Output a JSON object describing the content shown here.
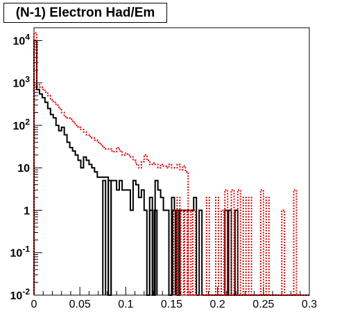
{
  "chart_data": {
    "type": "line",
    "title": "(N-1) Electron Had/Em",
    "xlabel": "",
    "ylabel": "",
    "xlim": [
      0,
      0.3
    ],
    "ylim": [
      0.01,
      20000
    ],
    "ylog": true,
    "grid": false,
    "legend": "none",
    "x_ticks": [
      {
        "v": 0,
        "label": "0"
      },
      {
        "v": 0.05,
        "label": "0.05"
      },
      {
        "v": 0.1,
        "label": "0.1"
      },
      {
        "v": 0.15,
        "label": "0.15"
      },
      {
        "v": 0.2,
        "label": "0.2"
      },
      {
        "v": 0.25,
        "label": "0.25"
      },
      {
        "v": 0.3,
        "label": "0.3"
      }
    ],
    "y_ticks": [
      {
        "v": 0.01,
        "base": "10",
        "exp": "-2"
      },
      {
        "v": 0.1,
        "base": "10",
        "exp": "-1"
      },
      {
        "v": 1,
        "base": "1",
        "exp": ""
      },
      {
        "v": 10,
        "base": "10",
        "exp": ""
      },
      {
        "v": 100,
        "base": "10",
        "exp": "2"
      },
      {
        "v": 1000,
        "base": "10",
        "exp": "3"
      },
      {
        "v": 10000,
        "base": "10",
        "exp": "4"
      }
    ],
    "bin_width": 0.003,
    "series": [
      {
        "color": "#000000",
        "style": "solid",
        "values": [
          10000,
          700,
          550,
          450,
          350,
          250,
          180,
          150,
          100,
          75,
          90,
          60,
          40,
          30,
          25,
          20,
          15,
          10,
          18,
          15,
          12,
          10,
          8,
          6,
          6,
          6,
          6,
          0.01,
          5,
          5,
          3,
          5,
          3,
          3,
          3,
          1,
          5,
          4,
          2,
          3,
          1,
          0.01,
          1,
          0.01,
          5,
          3,
          2,
          1,
          1,
          0.01,
          2,
          1,
          0.01,
          1,
          1,
          1,
          1,
          1,
          2,
          0.01,
          1,
          0.01,
          0.01,
          0.01,
          0.01,
          0.01,
          0.01,
          0.01,
          0.01,
          0.01,
          0.01,
          0.01,
          0.01,
          0.01,
          0.01,
          0.01,
          0.01,
          0.01,
          0.01,
          0.01,
          0.01,
          0.01,
          0.01,
          0.01,
          0.01,
          0.01,
          0.01,
          0.01,
          0.01,
          0.01,
          0.01,
          0.01,
          0.01,
          0.01,
          0.01,
          0.01,
          0.01,
          0.01,
          0.01,
          0.01
        ]
      },
      {
        "color": "#dd0000",
        "style": "dotted",
        "values": [
          15000,
          900,
          800,
          700,
          600,
          500,
          400,
          350,
          300,
          250,
          200,
          160,
          150,
          140,
          120,
          100,
          90,
          80,
          70,
          60,
          55,
          50,
          45,
          40,
          35,
          30,
          28,
          28,
          25,
          24,
          30,
          25,
          20,
          22,
          20,
          18,
          15,
          12,
          10,
          14,
          20,
          15,
          12,
          13,
          12,
          10,
          12,
          11,
          10,
          12,
          10,
          10,
          12,
          9,
          11,
          8,
          0.01,
          0.01,
          0.01,
          0.01,
          0.01,
          0.01,
          0.01,
          0.01,
          0.01,
          0.01,
          0.01,
          0.01,
          0.01,
          0.01,
          0.01,
          0.01,
          0.01,
          0.01,
          0.01,
          0.01,
          0.01,
          0.01,
          0.01,
          0.01,
          0.01,
          0.01,
          0.01,
          0.01,
          0.01,
          0.01,
          0.01,
          0.01,
          0.01,
          0.01,
          0.01,
          0.01,
          0.01,
          0.01,
          0.01,
          0.01,
          0.01,
          0.01,
          0.01,
          0.01
        ]
      }
    ],
    "spikes": [
      {
        "x": 0.075,
        "y": 5,
        "color": "#000000",
        "style": "solid"
      },
      {
        "x": 0.081,
        "y": 5,
        "color": "#000000",
        "style": "solid"
      },
      {
        "x": 0.126,
        "y": 2,
        "color": "#000000",
        "style": "solid"
      },
      {
        "x": 0.131,
        "y": 1,
        "color": "#000000",
        "style": "solid"
      },
      {
        "x": 0.151,
        "y": 1,
        "color": "#000000",
        "style": "solid"
      },
      {
        "x": 0.155,
        "y": 1,
        "color": "#000000",
        "style": "solid"
      },
      {
        "x": 0.208,
        "y": 1,
        "color": "#000000",
        "style": "solid"
      },
      {
        "x": 0.212,
        "y": 1,
        "color": "#000000",
        "style": "solid"
      },
      {
        "x": 0.219,
        "y": 1,
        "color": "#000000",
        "style": "solid"
      },
      {
        "x": 0.152,
        "y": 1,
        "color": "#dd0000",
        "style": "dotted"
      },
      {
        "x": 0.156,
        "y": 2,
        "color": "#dd0000",
        "style": "dotted"
      },
      {
        "x": 0.16,
        "y": 1,
        "color": "#dd0000",
        "style": "dotted"
      },
      {
        "x": 0.164,
        "y": 1,
        "color": "#dd0000",
        "style": "dotted"
      },
      {
        "x": 0.168,
        "y": 1,
        "color": "#dd0000",
        "style": "dotted"
      },
      {
        "x": 0.173,
        "y": 1,
        "color": "#dd0000",
        "style": "dotted"
      },
      {
        "x": 0.188,
        "y": 2,
        "color": "#dd0000",
        "style": "dotted"
      },
      {
        "x": 0.198,
        "y": 2,
        "color": "#dd0000",
        "style": "dotted"
      },
      {
        "x": 0.204,
        "y": 1,
        "color": "#dd0000",
        "style": "dotted"
      },
      {
        "x": 0.208,
        "y": 3,
        "color": "#dd0000",
        "style": "dotted"
      },
      {
        "x": 0.215,
        "y": 3,
        "color": "#dd0000",
        "style": "dotted"
      },
      {
        "x": 0.222,
        "y": 3,
        "color": "#dd0000",
        "style": "dotted"
      },
      {
        "x": 0.228,
        "y": 2,
        "color": "#dd0000",
        "style": "dotted"
      },
      {
        "x": 0.234,
        "y": 2,
        "color": "#dd0000",
        "style": "dotted"
      },
      {
        "x": 0.247,
        "y": 3,
        "color": "#dd0000",
        "style": "dotted"
      },
      {
        "x": 0.253,
        "y": 2,
        "color": "#dd0000",
        "style": "dotted"
      },
      {
        "x": 0.27,
        "y": 1,
        "color": "#dd0000",
        "style": "dotted"
      },
      {
        "x": 0.283,
        "y": 3,
        "color": "#dd0000",
        "style": "dotted"
      }
    ]
  }
}
